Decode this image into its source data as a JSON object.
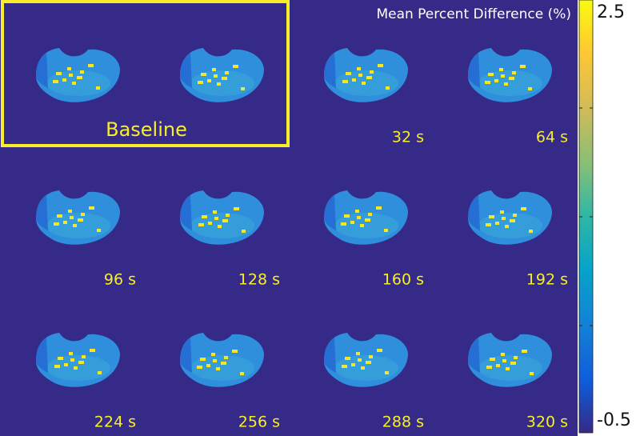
{
  "figure": {
    "title": "Mean Percent Difference (%)",
    "baseline_label": "Baseline",
    "panels": [
      "32 s",
      "64 s",
      "96 s",
      "128 s",
      "160 s",
      "192 s",
      "224 s",
      "256 s",
      "288 s",
      "320 s"
    ],
    "colorbar": {
      "lim": [
        -0.5,
        2.5
      ]
    }
  }
}
